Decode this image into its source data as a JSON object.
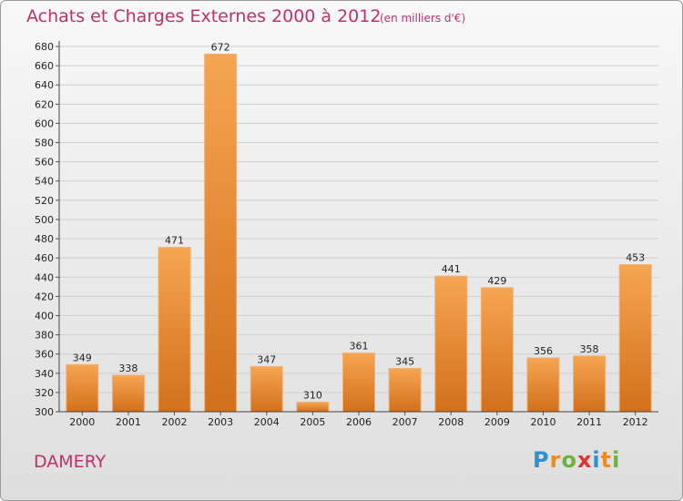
{
  "chart_data": {
    "type": "bar",
    "title": "Achats et Charges Externes 2000 à 2012",
    "subtitle": "(en milliers d'€)",
    "categories": [
      "2000",
      "2001",
      "2002",
      "2003",
      "2004",
      "2005",
      "2006",
      "2007",
      "2008",
      "2009",
      "2010",
      "2011",
      "2012"
    ],
    "values": [
      349,
      338,
      471,
      672,
      347,
      310,
      361,
      345,
      441,
      429,
      356,
      358,
      453
    ],
    "ylim": [
      300,
      680
    ],
    "yticks": [
      300,
      320,
      340,
      360,
      380,
      400,
      420,
      440,
      460,
      480,
      500,
      520,
      540,
      560,
      580,
      600,
      620,
      640,
      660,
      680
    ],
    "grid": true,
    "bar_color": "#f0902c"
  },
  "footer": {
    "city": "DAMERY",
    "logo": [
      "P",
      "r",
      "o",
      "x",
      "i",
      "t",
      "i"
    ]
  }
}
